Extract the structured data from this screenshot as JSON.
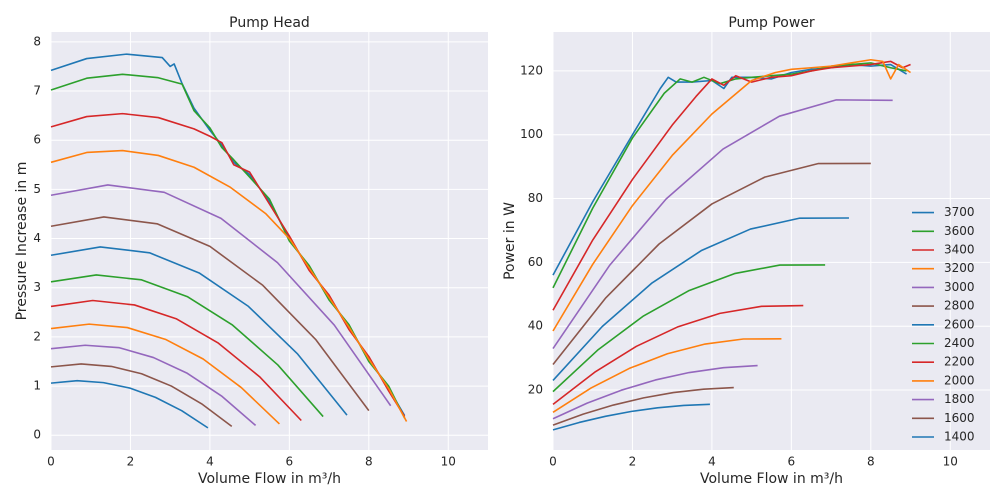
{
  "chart_data": [
    {
      "type": "line",
      "title": "Pump Head",
      "x_label": "Volume Flow in m³/h",
      "y_label": "Pressure Increase in m",
      "xlim": [
        0,
        11
      ],
      "ylim": [
        -0.3,
        8.2
      ],
      "xticks": [
        0,
        2,
        4,
        6,
        8,
        10
      ],
      "yticks": [
        0,
        1,
        2,
        3,
        4,
        5,
        6,
        7,
        8
      ],
      "grid": true,
      "series": [
        {
          "color": "#1f77b4",
          "x": [
            0,
            0.9,
            1.9,
            2.8,
            3.0,
            3.1,
            3.3,
            3.6,
            4.0,
            4.3,
            4.6,
            5.0,
            5.5,
            6.0,
            6.5,
            7.0,
            7.5,
            8.0,
            8.5,
            8.9
          ],
          "values": [
            7.42,
            7.66,
            7.75,
            7.68,
            7.5,
            7.55,
            7.15,
            6.65,
            6.2,
            5.9,
            5.55,
            5.3,
            4.75,
            4.0,
            3.4,
            2.8,
            2.2,
            1.55,
            0.95,
            0.4
          ]
        },
        {
          "color": "#2ca02c",
          "x": [
            0,
            0.9,
            1.8,
            2.7,
            3.3,
            3.6,
            4.0,
            4.3,
            4.6,
            5.0,
            5.5,
            6.0,
            6.5,
            7.0,
            7.5,
            8.0,
            8.5,
            8.9
          ],
          "values": [
            7.02,
            7.26,
            7.34,
            7.27,
            7.14,
            6.6,
            6.25,
            5.85,
            5.6,
            5.25,
            4.8,
            3.95,
            3.45,
            2.75,
            2.25,
            1.5,
            1.0,
            0.35
          ]
        },
        {
          "color": "#d62728",
          "x": [
            0,
            0.9,
            1.8,
            2.7,
            3.6,
            4.0,
            4.3,
            4.6,
            5.0,
            5.5,
            6.0,
            6.5,
            7.0,
            7.5,
            8.0,
            8.5,
            8.9
          ],
          "values": [
            6.27,
            6.48,
            6.54,
            6.46,
            6.23,
            6.08,
            5.95,
            5.5,
            5.35,
            4.7,
            4.05,
            3.35,
            2.85,
            2.15,
            1.6,
            0.9,
            0.38
          ]
        },
        {
          "color": "#ff7f0e",
          "x": [
            0,
            0.9,
            1.8,
            2.7,
            3.6,
            4.5,
            5.4,
            6.0,
            6.5,
            7.0,
            7.5,
            8.0,
            8.5,
            8.95
          ],
          "values": [
            5.55,
            5.75,
            5.79,
            5.69,
            5.45,
            5.05,
            4.51,
            4.0,
            3.4,
            2.8,
            2.2,
            1.55,
            0.95,
            0.28
          ]
        },
        {
          "color": "#9467bd",
          "x": [
            0,
            1.43,
            2.85,
            4.28,
            5.7,
            7.13,
            8.55
          ],
          "values": [
            4.88,
            5.09,
            4.94,
            4.41,
            3.51,
            2.24,
            0.6
          ]
        },
        {
          "color": "#8c564b",
          "x": [
            0,
            1.33,
            2.67,
            4,
            5.33,
            6.67,
            8
          ],
          "values": [
            4.25,
            4.44,
            4.3,
            3.84,
            3.05,
            1.94,
            0.5
          ]
        },
        {
          "color": "#1f77b4",
          "x": [
            0,
            1.24,
            2.48,
            3.73,
            4.97,
            6.21,
            7.45
          ],
          "values": [
            3.66,
            3.83,
            3.71,
            3.3,
            2.62,
            1.65,
            0.41
          ]
        },
        {
          "color": "#2ca02c",
          "x": [
            0,
            1.14,
            2.28,
            3.43,
            4.57,
            5.71,
            6.85
          ],
          "values": [
            3.12,
            3.26,
            3.16,
            2.82,
            2.24,
            1.43,
            0.38
          ]
        },
        {
          "color": "#d62728",
          "x": [
            0,
            1.05,
            2.1,
            3.15,
            4.2,
            5.25,
            6.3
          ],
          "values": [
            2.62,
            2.74,
            2.65,
            2.37,
            1.88,
            1.19,
            0.3
          ]
        },
        {
          "color": "#ff7f0e",
          "x": [
            0,
            0.96,
            1.92,
            2.88,
            3.83,
            4.79,
            5.75
          ],
          "values": [
            2.17,
            2.26,
            2.19,
            1.95,
            1.55,
            0.97,
            0.23
          ]
        },
        {
          "color": "#9467bd",
          "x": [
            0,
            0.86,
            1.72,
            2.58,
            3.43,
            4.29,
            5.15
          ],
          "values": [
            1.76,
            1.83,
            1.78,
            1.58,
            1.26,
            0.8,
            0.2
          ]
        },
        {
          "color": "#8c564b",
          "x": [
            0,
            0.76,
            1.52,
            2.28,
            3.03,
            3.79,
            4.55
          ],
          "values": [
            1.39,
            1.45,
            1.4,
            1.25,
            1.0,
            0.64,
            0.18
          ]
        },
        {
          "color": "#1f77b4",
          "x": [
            0,
            0.66,
            1.32,
            1.98,
            2.63,
            3.29,
            3.95
          ],
          "values": [
            1.06,
            1.11,
            1.07,
            0.96,
            0.77,
            0.5,
            0.15
          ]
        }
      ]
    },
    {
      "type": "line",
      "title": "Pump Power",
      "x_label": "Volume Flow in m³/h",
      "y_label": "Power in W",
      "xlim": [
        0,
        11
      ],
      "ylim": [
        1.2,
        132.2
      ],
      "xticks": [
        0,
        2,
        4,
        6,
        8,
        10
      ],
      "yticks": [
        20,
        40,
        60,
        80,
        100,
        120
      ],
      "grid": true,
      "legend": "lower right",
      "series": [
        {
          "name": "3700",
          "color": "#1f77b4",
          "x": [
            0,
            1,
            2,
            2.7,
            2.9,
            3.1,
            3.5,
            4.0,
            4.3,
            4.5,
            5,
            5.5,
            6,
            6.5,
            7,
            7.5,
            8,
            8.5,
            8.9
          ],
          "values": [
            56,
            79,
            100,
            114.5,
            118,
            116.5,
            116.5,
            117,
            114.5,
            118,
            118,
            117.5,
            119.5,
            120.5,
            121,
            122,
            121.5,
            122,
            119
          ]
        },
        {
          "name": "3600",
          "color": "#2ca02c",
          "x": [
            0,
            1,
            2,
            2.8,
            3.2,
            3.5,
            3.8,
            4.2,
            4.6,
            5,
            5.5,
            6,
            6.5,
            7,
            7.5,
            8,
            8.5,
            8.9
          ],
          "values": [
            52,
            77,
            99,
            113,
            117.5,
            116.5,
            118,
            116,
            117.5,
            118,
            118.5,
            119,
            120,
            121.5,
            122,
            122.5,
            121,
            120
          ]
        },
        {
          "name": "3400",
          "color": "#d62728",
          "x": [
            0,
            1,
            2,
            3,
            3.6,
            4.0,
            4.3,
            4.6,
            5.0,
            5.5,
            6.0,
            6.5,
            7,
            7.5,
            8,
            8.5,
            8.8,
            9.0
          ],
          "values": [
            45,
            67,
            86,
            103,
            112,
            117.5,
            115.5,
            118.5,
            116.5,
            118,
            118.5,
            120,
            121,
            121.5,
            122,
            123,
            121,
            122
          ]
        },
        {
          "name": "3200",
          "color": "#ff7f0e",
          "x": [
            0,
            1,
            2,
            3,
            4,
            5,
            5.6,
            6.0,
            6.5,
            7,
            7.5,
            8.0,
            8.3,
            8.5,
            8.7,
            9.0
          ],
          "values": [
            38.5,
            59.4,
            77.8,
            93.5,
            106.5,
            117,
            119.5,
            120.5,
            121,
            121.5,
            122.5,
            123.5,
            123,
            117.5,
            122,
            119.5
          ]
        },
        {
          "name": "3000",
          "color": "#9467bd",
          "x": [
            0,
            1.43,
            2.85,
            4.28,
            5.7,
            7.13,
            8.55
          ],
          "values": [
            33,
            59.15,
            79.89,
            95.52,
            105.82,
            110.93,
            110.79
          ]
        },
        {
          "name": "2800",
          "color": "#8c564b",
          "x": [
            0,
            1.33,
            2.67,
            4,
            5.33,
            6.67,
            8
          ],
          "values": [
            28,
            48.9,
            65.76,
            78.31,
            86.71,
            90.96,
            91.01
          ]
        },
        {
          "name": "2600",
          "color": "#1f77b4",
          "x": [
            0,
            1.24,
            2.48,
            3.73,
            4.97,
            6.21,
            7.45
          ],
          "values": [
            23,
            39.9,
            53.43,
            63.67,
            70.44,
            73.86,
            73.91
          ]
        },
        {
          "name": "2400",
          "color": "#2ca02c",
          "x": [
            0,
            1.14,
            2.28,
            3.43,
            4.57,
            5.71,
            6.85
          ],
          "values": [
            19.5,
            32.67,
            43.22,
            51.2,
            56.49,
            59.15,
            59.2
          ]
        },
        {
          "name": "2200",
          "color": "#d62728",
          "x": [
            0,
            1.05,
            2.1,
            3.15,
            4.2,
            5.25,
            6.3
          ],
          "values": [
            15.5,
            25.58,
            33.7,
            39.84,
            44.02,
            46.23,
            46.45
          ]
        },
        {
          "name": "2000",
          "color": "#ff7f0e",
          "x": [
            0,
            0.96,
            1.92,
            2.88,
            3.83,
            4.79,
            5.75
          ],
          "values": [
            13,
            20.64,
            26.77,
            31.36,
            34.41,
            35.99,
            36.03
          ]
        },
        {
          "name": "1800",
          "color": "#9467bd",
          "x": [
            0,
            0.86,
            1.72,
            2.58,
            3.43,
            4.29,
            5.15
          ],
          "values": [
            11,
            15.9,
            19.94,
            23.15,
            25.48,
            27.0,
            27.66
          ]
        },
        {
          "name": "1600",
          "color": "#8c564b",
          "x": [
            0,
            0.76,
            1.52,
            2.28,
            3.03,
            3.79,
            4.55
          ],
          "values": [
            9,
            12.44,
            15.29,
            17.54,
            19.19,
            20.27,
            20.76
          ]
        },
        {
          "name": "1400",
          "color": "#1f77b4",
          "x": [
            0,
            0.66,
            1.32,
            1.98,
            2.63,
            3.29,
            3.95
          ],
          "values": [
            7.5,
            9.83,
            11.76,
            13.3,
            14.42,
            15.16,
            15.51
          ]
        }
      ]
    }
  ]
}
